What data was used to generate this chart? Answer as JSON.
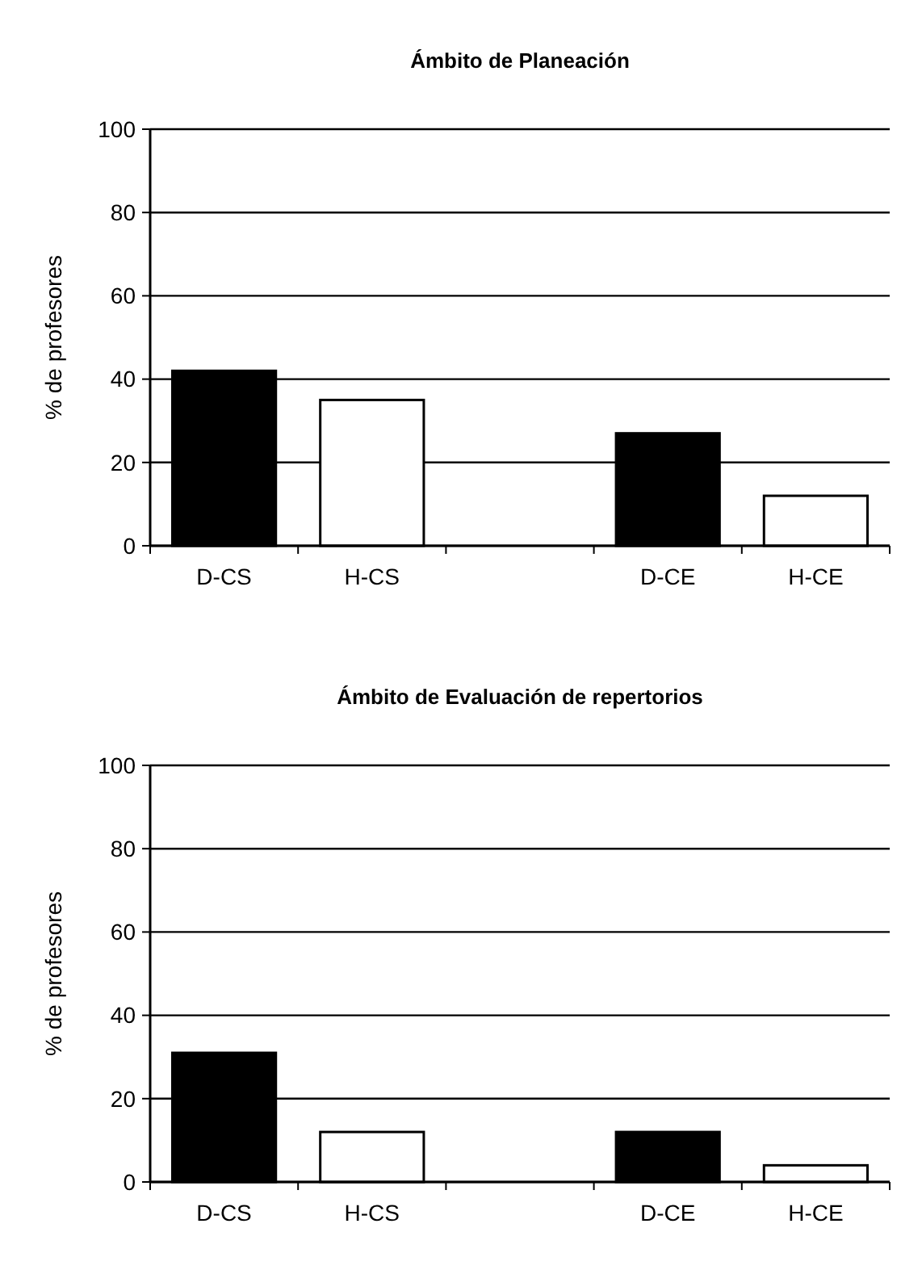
{
  "chart_data": [
    {
      "type": "bar",
      "title": "Ámbito de Planeación",
      "ylabel": "% de profesores",
      "categories": [
        "D-CS",
        "H-CS",
        null,
        "D-CE",
        "H-CE"
      ],
      "values": [
        42,
        35,
        null,
        27,
        12
      ],
      "colors": [
        "#000000",
        "#ffffff",
        null,
        "#000000",
        "#ffffff"
      ],
      "ylim": [
        0,
        100
      ],
      "yticks": [
        0,
        20,
        40,
        60,
        80,
        100
      ],
      "grid": "y"
    },
    {
      "type": "bar",
      "title": "Ámbito de Evaluación de repertorios",
      "ylabel": "% de profesores",
      "categories": [
        "D-CS",
        "H-CS",
        null,
        "D-CE",
        "H-CE"
      ],
      "values": [
        31,
        12,
        null,
        12,
        4
      ],
      "colors": [
        "#000000",
        "#ffffff",
        null,
        "#000000",
        "#ffffff"
      ],
      "ylim": [
        0,
        100
      ],
      "yticks": [
        0,
        20,
        40,
        60,
        80,
        100
      ],
      "grid": "y"
    }
  ]
}
